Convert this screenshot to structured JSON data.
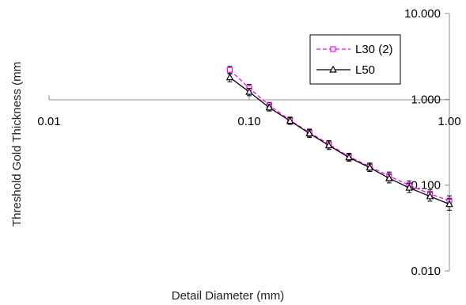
{
  "chart_data": {
    "type": "line",
    "xlabel": "Detail Diameter (mm)",
    "ylabel": "Threshold Gold Thickness (mm",
    "x_scale": "log",
    "y_scale": "log",
    "xlim": [
      0.01,
      1.0
    ],
    "ylim": [
      0.01,
      10.0
    ],
    "x_ticks": [
      "0.01",
      "0.10",
      "1.00"
    ],
    "y_ticks": [
      "10.000",
      "1.000",
      "0.100",
      "0.010"
    ],
    "grid": false,
    "legend_position": "top-right",
    "series": [
      {
        "name": "L30 (2)",
        "color": "#ff00ff",
        "line_style": "dashed",
        "marker": "square",
        "x": [
          0.08,
          0.1,
          0.126,
          0.16,
          0.2,
          0.25,
          0.315,
          0.4,
          0.5,
          0.63,
          0.8,
          1.0
        ],
        "y": [
          2.2,
          1.35,
          0.85,
          0.57,
          0.41,
          0.3,
          0.215,
          0.165,
          0.127,
          0.1,
          0.079,
          0.066
        ],
        "err": [
          0.22,
          0.14,
          0.07,
          0.05,
          0.04,
          0.03,
          0.02,
          0.016,
          0.015,
          0.012,
          0.009,
          0.009
        ]
      },
      {
        "name": "L50",
        "color": "#000000",
        "line_style": "solid",
        "marker": "triangle",
        "x": [
          0.08,
          0.1,
          0.126,
          0.16,
          0.2,
          0.25,
          0.315,
          0.4,
          0.5,
          0.63,
          0.8,
          1.0
        ],
        "y": [
          1.8,
          1.22,
          0.8,
          0.56,
          0.4,
          0.29,
          0.21,
          0.16,
          0.12,
          0.093,
          0.074,
          0.06
        ],
        "err": [
          0.2,
          0.12,
          0.07,
          0.05,
          0.04,
          0.03,
          0.02,
          0.016,
          0.014,
          0.011,
          0.009,
          0.009
        ]
      }
    ]
  }
}
